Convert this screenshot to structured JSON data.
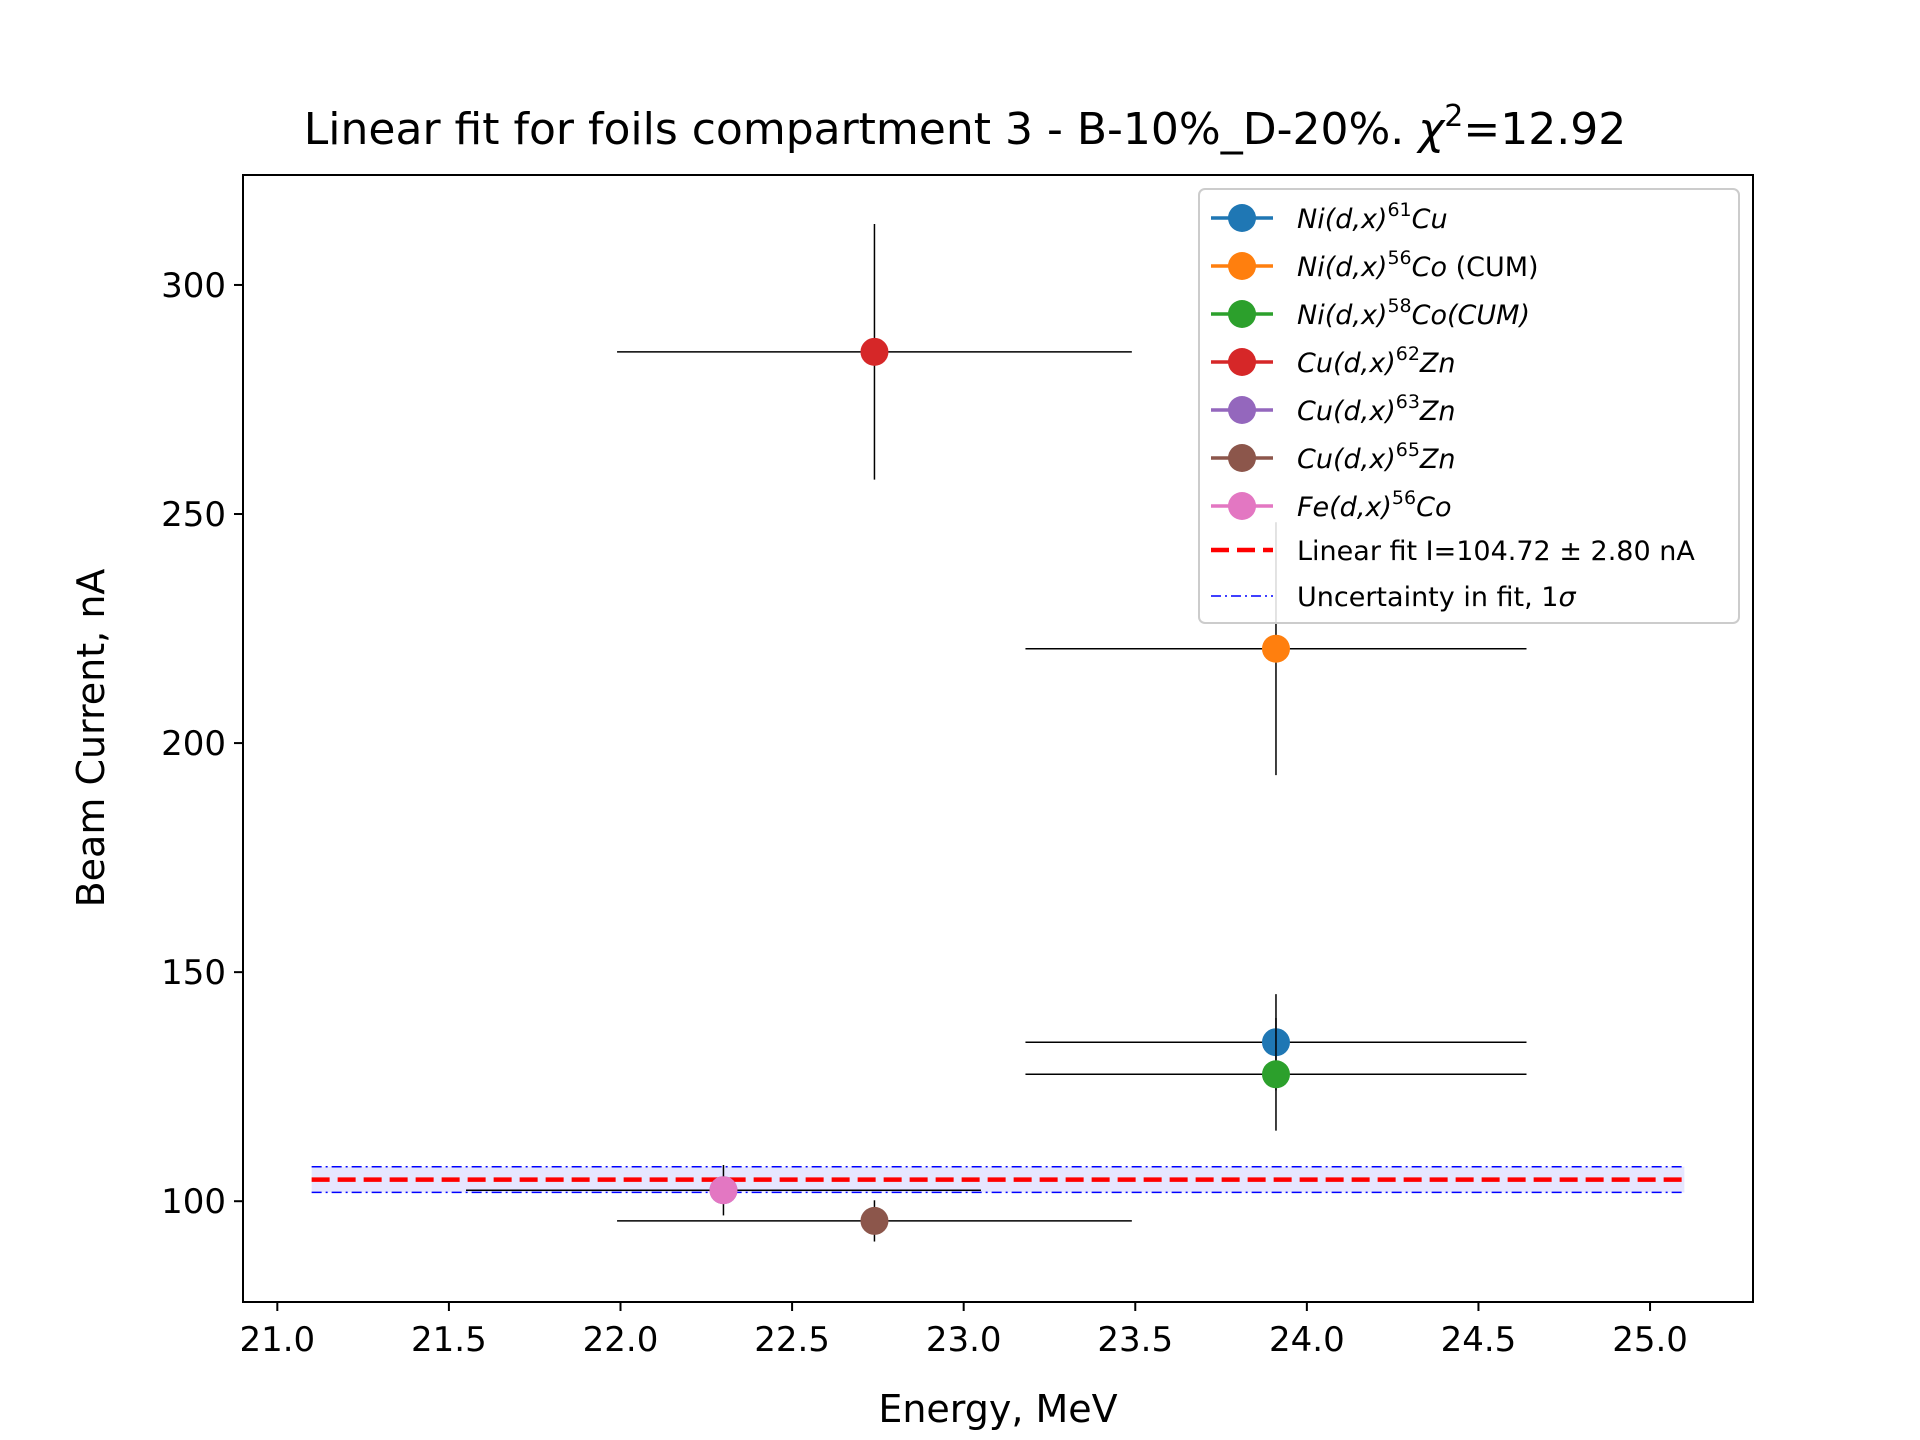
{
  "chart_data": {
    "type": "scatter",
    "title": "Linear fit for foils compartment 3 - B-10%_D-20%. χ²=12.92",
    "title_parts": {
      "main": "Linear fit for foils compartment 3 - B-10%_D-20%. ",
      "chi": "χ",
      "sup": "2",
      "value": "=12.92"
    },
    "xlabel": "Energy, MeV",
    "ylabel": "Beam Current, nA",
    "xlim": [
      20.9,
      25.3
    ],
    "ylim": [
      78,
      324
    ],
    "xticks": [
      21.0,
      21.5,
      22.0,
      22.5,
      23.0,
      23.5,
      24.0,
      24.5,
      25.0
    ],
    "xtick_labels": [
      "21.0",
      "21.5",
      "22.0",
      "22.5",
      "23.0",
      "23.5",
      "24.0",
      "24.5",
      "25.0"
    ],
    "yticks": [
      100,
      150,
      200,
      250,
      300
    ],
    "ytick_labels": [
      "100",
      "150",
      "200",
      "250",
      "300"
    ],
    "grid": false,
    "legend_placement": "top-right",
    "series": [
      {
        "label_parts": [
          "Ni(d,x)",
          "61",
          "Cu",
          ""
        ],
        "color": "#1f77b4",
        "x": 23.91,
        "y": 134.7,
        "xerr": 0.73,
        "yerr": 10.5
      },
      {
        "label_parts": [
          "Ni(d,x)",
          "56",
          "Co",
          " (CUM)"
        ],
        "color": "#ff7f0e",
        "x": 23.91,
        "y": 220.6,
        "xerr": 0.73,
        "yerr": 27.6
      },
      {
        "label_parts": [
          "Ni(d,x)",
          "58",
          "Co(CUM)",
          ""
        ],
        "color": "#2ca02c",
        "x": 23.91,
        "y": 127.7,
        "xerr": 0.73,
        "yerr": 12.3
      },
      {
        "label_parts": [
          "Cu(d,x)",
          "62",
          "Zn",
          ""
        ],
        "color": "#d62728",
        "x": 22.74,
        "y": 285.4,
        "xerr": 0.75,
        "yerr": 27.9
      },
      {
        "label_parts": [
          "Cu(d,x)",
          "63",
          "Zn",
          ""
        ],
        "color": "#9467bd",
        "x": 22.3,
        "y": 102.4,
        "xerr": 0.75,
        "yerr": 3.0
      },
      {
        "label_parts": [
          "Cu(d,x)",
          "65",
          "Zn",
          ""
        ],
        "color": "#8c564b",
        "x": 22.74,
        "y": 95.7,
        "xerr": 0.75,
        "yerr": 4.5
      },
      {
        "label_parts": [
          "Fe(d,x)",
          "56",
          "Co",
          ""
        ],
        "color": "#e377c2",
        "x": 22.3,
        "y": 102.4,
        "xerr": 0.75,
        "yerr": 5.5
      }
    ],
    "fit": {
      "label": "Linear fit I=104.72 ± 2.80 nA",
      "value": 104.72,
      "uncertainty": 2.8,
      "x_range": [
        21.1,
        25.1
      ],
      "color": "#ff0000"
    },
    "fit_band": {
      "label_main": "Uncertainty in fit, 1",
      "label_sigma": "σ",
      "color": "#0000ff",
      "fill": "#e6e6ff"
    }
  }
}
